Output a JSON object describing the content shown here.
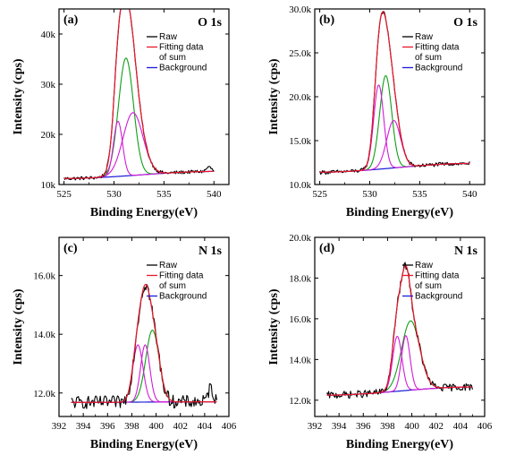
{
  "colors": {
    "raw": "#000000",
    "fit_sum": "#e8192c",
    "background": "#1a1ad6",
    "components": [
      "#0e9e17",
      "#d21bd6",
      "#d21bd6"
    ]
  },
  "chart_data": [
    {
      "type": "line",
      "panel_label": "(a)",
      "title": "O 1s",
      "xlabel": "Binding Energy(eV)",
      "ylabel": "Intensity (cps)",
      "xlim": [
        524.5,
        541.5
      ],
      "ylim": [
        10000,
        45000
      ],
      "xticks": [
        525,
        530,
        535,
        540
      ],
      "xtick_labels": [
        "525",
        "530",
        "535",
        "540"
      ],
      "yticks": [
        10000,
        20000,
        30000,
        40000
      ],
      "ytick_labels": [
        "10k",
        "20k",
        "30k",
        "40k"
      ],
      "legend": [
        "Raw",
        "Fitting data of sum",
        "Background"
      ],
      "legend_lines": [
        "Raw",
        "Fitting data",
        "of sum",
        "Background"
      ],
      "legend_location": "top-right",
      "baseline": {
        "x": [
          525,
          540
        ],
        "y": [
          11200,
          12600
        ]
      },
      "components": [
        {
          "center": 531.2,
          "amplitude": 23500,
          "width": 0.75
        },
        {
          "center": 530.4,
          "amplitude": 11000,
          "width": 0.45
        },
        {
          "center": 531.9,
          "amplitude": 12500,
          "width": 1.0
        }
      ],
      "noise": 350,
      "extra_bumps": [
        {
          "center": 539.5,
          "amplitude": 900,
          "width": 0.25
        }
      ]
    },
    {
      "type": "line",
      "panel_label": "(b)",
      "title": "O 1s",
      "xlabel": "Binding Energy(eV)",
      "ylabel": "Intensity (cps)",
      "xlim": [
        524.5,
        541.5
      ],
      "ylim": [
        10000,
        30000
      ],
      "xticks": [
        525,
        530,
        535,
        540
      ],
      "xtick_labels": [
        "525",
        "530",
        "535",
        "540"
      ],
      "yticks": [
        10000,
        15000,
        20000,
        25000,
        30000
      ],
      "ytick_labels": [
        "10.0k",
        "15.0k",
        "20.0k",
        "25.0k",
        "30.0k"
      ],
      "legend": [
        "Raw",
        "Fitting data of sum",
        "Background"
      ],
      "legend_lines": [
        "Raw",
        "Fitting data",
        "of sum",
        "Background"
      ],
      "legend_location": "top-right",
      "baseline": {
        "x": [
          525,
          540
        ],
        "y": [
          11400,
          12400
        ]
      },
      "components": [
        {
          "center": 531.6,
          "amplitude": 10600,
          "width": 0.6
        },
        {
          "center": 530.9,
          "amplitude": 9600,
          "width": 0.5
        },
        {
          "center": 532.4,
          "amplitude": 5400,
          "width": 0.7
        }
      ],
      "noise": 220,
      "extra_bumps": []
    },
    {
      "type": "line",
      "panel_label": "(c)",
      "title": "N 1s",
      "xlabel": "Binding Energy(eV)",
      "ylabel": "Intensity (cps)",
      "xlim": [
        392,
        406
      ],
      "ylim": [
        11200,
        17300
      ],
      "xticks": [
        392,
        394,
        396,
        398,
        400,
        402,
        404,
        406
      ],
      "xtick_labels": [
        "392",
        "394",
        "396",
        "398",
        "400",
        "402",
        "404",
        "406"
      ],
      "yticks": [
        12000,
        14000,
        16000
      ],
      "ytick_labels": [
        "12.0k",
        "14.0k",
        "16.0k"
      ],
      "legend": [
        "Raw",
        "Fitting data of sum",
        "Background"
      ],
      "legend_lines": [
        "Raw",
        "Fitting data",
        "of sum",
        "Background"
      ],
      "legend_location": "top-right",
      "baseline": {
        "x": [
          393,
          405
        ],
        "y": [
          11680,
          11700
        ]
      },
      "components": [
        {
          "center": 399.7,
          "amplitude": 2450,
          "width": 0.55
        },
        {
          "center": 398.5,
          "amplitude": 1950,
          "width": 0.42
        },
        {
          "center": 399.1,
          "amplitude": 1950,
          "width": 0.38
        }
      ],
      "noise": 220,
      "extra_bumps": [
        {
          "center": 404.5,
          "amplitude": 500,
          "width": 0.2
        }
      ]
    },
    {
      "type": "line",
      "panel_label": "(d)",
      "title": "N 1s",
      "xlabel": "Binding Energy(eV)",
      "ylabel": "Intensity (cps)",
      "xlim": [
        392,
        406
      ],
      "ylim": [
        11200,
        20000
      ],
      "xticks": [
        392,
        394,
        396,
        398,
        400,
        402,
        404,
        406
      ],
      "xtick_labels": [
        "392",
        "394",
        "396",
        "398",
        "400",
        "402",
        "404",
        "406"
      ],
      "yticks": [
        12000,
        14000,
        16000,
        18000,
        20000
      ],
      "ytick_labels": [
        "12.0k",
        "14.0k",
        "16.0k",
        "18.0k",
        "20.0k"
      ],
      "legend": [
        "Raw",
        "Fitting data of sum",
        "Background"
      ],
      "legend_lines": [
        "Raw",
        "Fitting data",
        "of sum",
        "Background"
      ],
      "legend_location": "top-right",
      "baseline": {
        "x": [
          393,
          405
        ],
        "y": [
          12250,
          12650
        ]
      },
      "components": [
        {
          "center": 399.9,
          "amplitude": 3400,
          "width": 0.75
        },
        {
          "center": 398.8,
          "amplitude": 2700,
          "width": 0.38
        },
        {
          "center": 399.5,
          "amplitude": 2700,
          "width": 0.35
        }
      ],
      "noise": 180,
      "extra_bumps": []
    }
  ]
}
